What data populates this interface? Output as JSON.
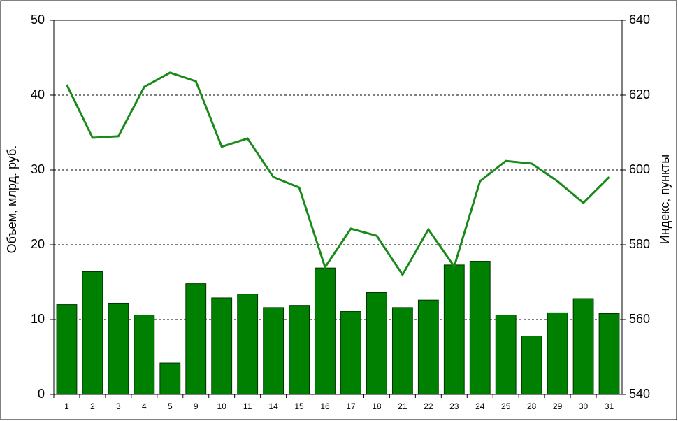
{
  "chart_data": {
    "type": "bar-line",
    "y_label": "Объем, млрд. руб.",
    "y2_label": "Индекс, пункты",
    "categories": [
      "1",
      "2",
      "3",
      "4",
      "5",
      "9",
      "10",
      "11",
      "14",
      "15",
      "16",
      "17",
      "18",
      "21",
      "22",
      "23",
      "24",
      "25",
      "28",
      "29",
      "30",
      "31"
    ],
    "series": [
      {
        "type": "bar",
        "color": "#008000",
        "values": [
          12.0,
          16.4,
          12.2,
          10.6,
          4.2,
          14.8,
          12.9,
          13.4,
          11.6,
          11.9,
          16.9,
          11.1,
          13.6,
          11.6,
          12.6,
          17.3,
          17.8,
          10.6,
          7.8,
          10.9,
          12.8,
          10.8
        ]
      },
      {
        "type": "line",
        "axis": "y2",
        "color": "#1a8a1a",
        "values": [
          622.8,
          608.6,
          609.0,
          622.2,
          626.0,
          623.7,
          606.2,
          608.4,
          598.1,
          595.3,
          574.0,
          584.3,
          582.4,
          572.0,
          584.1,
          574.2,
          597.0,
          602.4,
          601.7,
          597.0,
          591.2,
          598.1
        ]
      }
    ],
    "ylim": [
      0,
      50
    ],
    "yticks": [
      0,
      10,
      20,
      30,
      40,
      50
    ],
    "y2lim": [
      540,
      640
    ],
    "y2ticks": [
      540,
      560,
      580,
      600,
      620,
      640
    ],
    "grid": true
  }
}
